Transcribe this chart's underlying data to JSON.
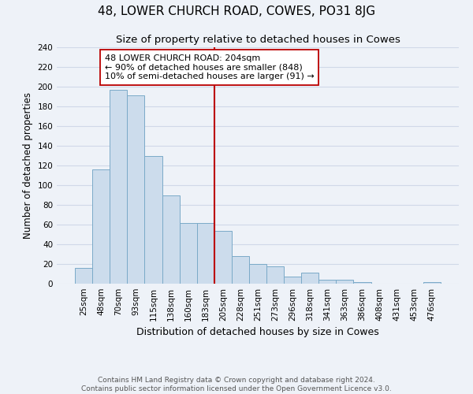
{
  "title": "48, LOWER CHURCH ROAD, COWES, PO31 8JG",
  "subtitle": "Size of property relative to detached houses in Cowes",
  "xlabel": "Distribution of detached houses by size in Cowes",
  "ylabel": "Number of detached properties",
  "bar_labels": [
    "25sqm",
    "48sqm",
    "70sqm",
    "93sqm",
    "115sqm",
    "138sqm",
    "160sqm",
    "183sqm",
    "205sqm",
    "228sqm",
    "251sqm",
    "273sqm",
    "296sqm",
    "318sqm",
    "341sqm",
    "363sqm",
    "386sqm",
    "408sqm",
    "431sqm",
    "453sqm",
    "476sqm"
  ],
  "bar_values": [
    16,
    116,
    197,
    191,
    130,
    90,
    62,
    62,
    54,
    28,
    20,
    18,
    7,
    11,
    4,
    4,
    2,
    0,
    0,
    0,
    2
  ],
  "bar_color": "#ccdcec",
  "bar_edgecolor": "#7aaac8",
  "vline_x_idx": 8,
  "vline_color": "#bb0000",
  "annotation_line1": "48 LOWER CHURCH ROAD: 204sqm",
  "annotation_line2": "← 90% of detached houses are smaller (848)",
  "annotation_line3": "10% of semi-detached houses are larger (91) →",
  "annotation_box_edgecolor": "#bb0000",
  "ylim": [
    0,
    240
  ],
  "yticks": [
    0,
    20,
    40,
    60,
    80,
    100,
    120,
    140,
    160,
    180,
    200,
    220,
    240
  ],
  "footnote1": "Contains HM Land Registry data © Crown copyright and database right 2024.",
  "footnote2": "Contains public sector information licensed under the Open Government Licence v3.0.",
  "bg_color": "#eef2f8",
  "grid_color": "#d0d8e8",
  "title_fontsize": 11,
  "subtitle_fontsize": 9.5,
  "ylabel_fontsize": 8.5,
  "xlabel_fontsize": 9,
  "tick_fontsize": 7.5,
  "annotation_fontsize": 8,
  "footnote_fontsize": 6.5
}
